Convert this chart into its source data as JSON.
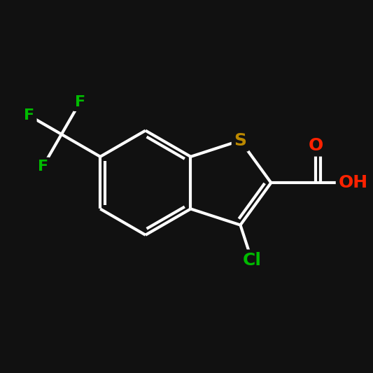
{
  "background_color": "#111111",
  "bond_color": "#ffffff",
  "bond_width": 3.0,
  "atom_colors": {
    "Cl": "#00bb00",
    "O": "#ff2200",
    "S": "#bb8800",
    "F": "#00bb00",
    "H": "#ffffff",
    "C": "#ffffff"
  },
  "font_size": 16,
  "fig_size": [
    5.33,
    5.33
  ],
  "dpi": 100,
  "xlim": [
    0,
    10
  ],
  "ylim": [
    0,
    10
  ]
}
